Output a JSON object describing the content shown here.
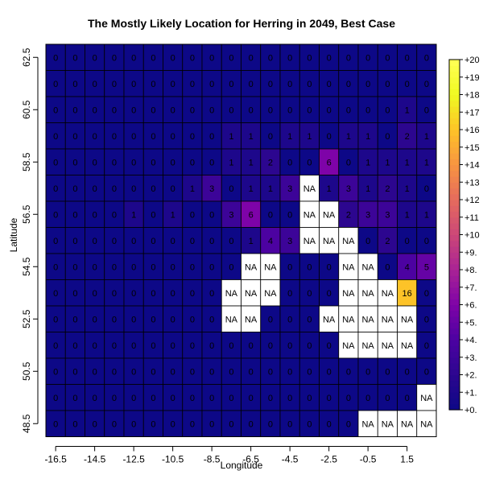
{
  "chart_data": {
    "type": "heatmap",
    "title": "The Mostly Likely Location for Herring in 2049, Best Case",
    "xlabel": "Longitude",
    "ylabel": "Latitude",
    "x_tick_labels": [
      "-16.5",
      "-14.5",
      "-12.5",
      "-10.5",
      "-8.5",
      "-6.5",
      "-4.5",
      "-2.5",
      "-0.5",
      "1.5"
    ],
    "y_tick_labels": [
      "48.5",
      "50.5",
      "52.5",
      "54.5",
      "56.5",
      "58.5",
      "60.5",
      "62.5"
    ],
    "x": [
      -16.5,
      -15.5,
      -14.5,
      -13.5,
      -12.5,
      -11.5,
      -10.5,
      -9.5,
      -8.5,
      -7.5,
      -6.5,
      -5.5,
      -4.5,
      -3.5,
      -2.5,
      -1.5,
      -0.5,
      0.5,
      1.5,
      2.5
    ],
    "y": [
      62.5,
      61.5,
      60.5,
      59.5,
      58.5,
      57.5,
      56.5,
      55.5,
      54.5,
      53.5,
      52.5,
      51.5,
      50.5,
      49.5,
      48.5
    ],
    "values": [
      [
        0,
        0,
        0,
        0,
        0,
        0,
        0,
        0,
        0,
        0,
        0,
        0,
        0,
        0,
        0,
        0,
        0,
        0,
        0,
        0
      ],
      [
        0,
        0,
        0,
        0,
        0,
        0,
        0,
        0,
        0,
        0,
        0,
        0,
        0,
        0,
        0,
        0,
        0,
        0,
        0,
        0
      ],
      [
        0,
        0,
        0,
        0,
        0,
        0,
        0,
        0,
        0,
        0,
        0,
        0,
        0,
        0,
        0,
        0,
        0,
        0,
        1,
        0
      ],
      [
        0,
        0,
        0,
        0,
        0,
        0,
        0,
        0,
        0,
        1,
        1,
        0,
        1,
        1,
        0,
        1,
        1,
        0,
        2,
        1
      ],
      [
        0,
        0,
        0,
        0,
        0,
        0,
        0,
        0,
        0,
        1,
        1,
        2,
        0,
        0,
        6,
        0,
        1,
        1,
        1,
        1
      ],
      [
        0,
        0,
        0,
        0,
        0,
        0,
        0,
        1,
        3,
        0,
        1,
        1,
        3,
        "NA",
        1,
        3,
        1,
        2,
        1,
        0
      ],
      [
        0,
        0,
        0,
        0,
        1,
        0,
        1,
        0,
        0,
        3,
        6,
        0,
        0,
        "NA",
        "NA",
        2,
        3,
        3,
        1,
        1
      ],
      [
        0,
        0,
        0,
        0,
        0,
        0,
        0,
        0,
        0,
        0,
        1,
        4,
        3,
        "NA",
        "NA",
        "NA",
        0,
        2,
        0,
        0
      ],
      [
        0,
        0,
        0,
        0,
        0,
        0,
        0,
        0,
        0,
        0,
        "NA",
        "NA",
        0,
        0,
        0,
        "NA",
        "NA",
        0,
        4,
        5
      ],
      [
        0,
        0,
        0,
        0,
        0,
        0,
        0,
        0,
        0,
        "NA",
        "NA",
        "NA",
        0,
        0,
        0,
        "NA",
        "NA",
        "NA",
        16,
        0
      ],
      [
        0,
        0,
        0,
        0,
        0,
        0,
        0,
        0,
        0,
        "NA",
        "NA",
        0,
        0,
        0,
        "NA",
        "NA",
        "NA",
        "NA",
        "NA",
        0
      ],
      [
        0,
        0,
        0,
        0,
        0,
        0,
        0,
        0,
        0,
        0,
        0,
        0,
        0,
        0,
        0,
        "NA",
        "NA",
        "NA",
        "NA",
        0
      ],
      [
        0,
        0,
        0,
        0,
        0,
        0,
        0,
        0,
        0,
        0,
        0,
        0,
        0,
        0,
        0,
        0,
        0,
        0,
        0,
        0
      ],
      [
        0,
        0,
        0,
        0,
        0,
        0,
        0,
        0,
        0,
        0,
        0,
        0,
        0,
        0,
        0,
        0,
        0,
        0,
        0,
        "NA"
      ],
      [
        0,
        0,
        0,
        0,
        0,
        0,
        0,
        0,
        0,
        0,
        0,
        0,
        0,
        0,
        0,
        0,
        "NA",
        "NA",
        "NA",
        "NA"
      ]
    ],
    "color_scale": {
      "min": 0,
      "max": 20,
      "stops": [
        "#0d0887",
        "#2c068f",
        "#4c02a1",
        "#7e03a8",
        "#a92395",
        "#cc4778",
        "#e56b5d",
        "#f89441",
        "#fdc328",
        "#f0f921",
        "#ffff55"
      ],
      "legend_labels": [
        "+0.",
        "+1.",
        "+2.",
        "+3.",
        "+4.",
        "+5.",
        "+6.",
        "+7.",
        "+8.",
        "+9.",
        "+10",
        "+11",
        "+12",
        "+13",
        "+14",
        "+15",
        "+16",
        "+17",
        "+18",
        "+19",
        "+20"
      ]
    },
    "na_color": "#ffffff",
    "cell_border_color": "#000000",
    "legend_placement": "right"
  }
}
